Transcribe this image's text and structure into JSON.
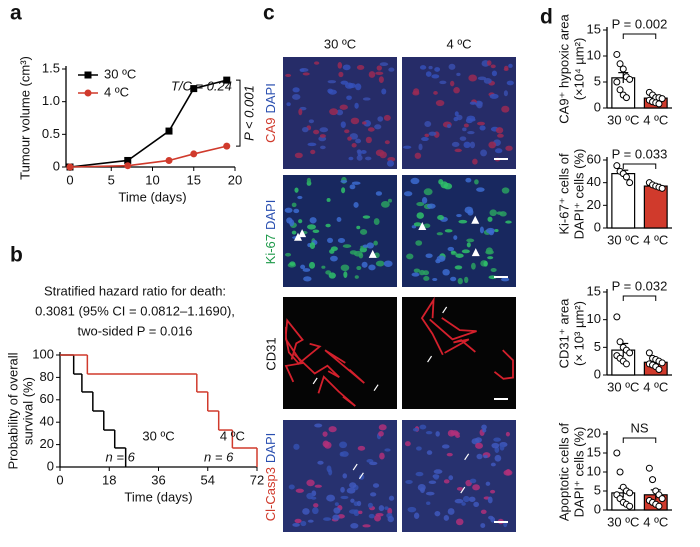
{
  "panel_labels": [
    "a",
    "b",
    "c",
    "d"
  ],
  "chart_data": [
    {
      "type": "line",
      "xlabel": "Time (days)",
      "ylabel": "Tumour volume (cm³)",
      "x": [
        0,
        7,
        12,
        15,
        19
      ],
      "xlim": [
        0,
        20
      ],
      "xticks": [
        0,
        5,
        10,
        15,
        20
      ],
      "ylim": [
        0,
        1.5
      ],
      "yticks": [
        0,
        0.5,
        {
          "value": 1,
          "label": "1.0"
        },
        1.5
      ],
      "legend": "upper left",
      "series": [
        {
          "name": "30 ºC",
          "color": "#000000",
          "marker": "square",
          "values": [
            0,
            0.1,
            0.55,
            1.2,
            1.33
          ]
        },
        {
          "name": "4 ºC",
          "color": "#d03a2c",
          "marker": "circle",
          "values": [
            0,
            0.02,
            0.1,
            0.2,
            0.32
          ]
        }
      ],
      "annotations": [
        "T/C = 0.24",
        "P < 0.001"
      ]
    },
    {
      "type": "step",
      "title": [
        "Stratified hazard ratio for death:",
        "0.3081 (95% CI = 0.0812–1.1690),",
        "two-sided P = 0.016"
      ],
      "xlabel": "Time (days)",
      "ylabel": [
        "Probability of overall",
        "survival (%)"
      ],
      "xlim": [
        0,
        72
      ],
      "xticks": [
        0,
        18,
        36,
        54,
        72
      ],
      "ylim": [
        0,
        100
      ],
      "yticks": [
        0,
        20,
        40,
        60,
        80,
        100
      ],
      "series": [
        {
          "name": "30 ºC",
          "color": "#000000",
          "x": [
            0,
            5,
            8,
            12,
            16,
            20,
            24
          ],
          "values": [
            100,
            83,
            67,
            50,
            33,
            17,
            0
          ],
          "n_label": "n = 6"
        },
        {
          "name": "4 ºC",
          "color": "#d03a2c",
          "x": [
            0,
            10,
            50,
            54,
            58,
            63,
            72
          ],
          "values": [
            100,
            83,
            67,
            50,
            33,
            17,
            0
          ],
          "n_label": "n = 6"
        }
      ]
    },
    {
      "type": "bar",
      "ylabel": [
        "CA9⁺ hypoxic area",
        "(×10⁴ µm²)"
      ],
      "categories": [
        "30 ºC",
        "4 ºC"
      ],
      "colors": [
        "#ffffff",
        "#d03a2c"
      ],
      "values": [
        5.8,
        1.9
      ],
      "errors": [
        1.0,
        0.3
      ],
      "points": [
        [
          10.3,
          8.5,
          7.5,
          6,
          5.5,
          5,
          3.5,
          2.5,
          2
        ],
        [
          3,
          2.5,
          2,
          2,
          1.8,
          1.5,
          1.2,
          1,
          0.8
        ]
      ],
      "ylim": [
        0,
        15
      ],
      "yticks": [
        0,
        5,
        10,
        15
      ],
      "annotation": "P = 0.002"
    },
    {
      "type": "bar",
      "ylabel": [
        "Ki-67⁺ cells of",
        "DAPI⁺ cells (%)"
      ],
      "categories": [
        "30 ºC",
        "4 ºC"
      ],
      "colors": [
        "#ffffff",
        "#d03a2c"
      ],
      "values": [
        48,
        37
      ],
      "errors": [
        3,
        1.5
      ],
      "points": [
        [
          55,
          50,
          48,
          45,
          40
        ],
        [
          40,
          38,
          37,
          36,
          35
        ]
      ],
      "ylim": [
        0,
        60
      ],
      "yticks": [
        0,
        20,
        40,
        60
      ],
      "annotation": "P = 0.033"
    },
    {
      "type": "bar",
      "ylabel": [
        "CD31⁺ area",
        "(× 10³ µm²)"
      ],
      "categories": [
        "30 ºC",
        "4 ºC"
      ],
      "colors": [
        "#ffffff",
        "#d03a2c"
      ],
      "values": [
        4.5,
        2.3
      ],
      "errors": [
        1.2,
        0.4
      ],
      "points": [
        [
          10.5,
          6,
          5,
          4.5,
          4,
          3.5,
          3,
          2.5,
          2
        ],
        [
          4,
          3,
          2.8,
          2.5,
          2.2,
          2,
          1.8,
          1.5,
          1
        ]
      ],
      "ylim": [
        0,
        15
      ],
      "yticks": [
        0,
        5,
        10,
        15
      ],
      "annotation": "P = 0.032"
    },
    {
      "type": "bar",
      "ylabel": [
        "Apoptotic cells of",
        "DAPI⁺ cells (%)"
      ],
      "categories": [
        "30 ºC",
        "4 ºC"
      ],
      "colors": [
        "#ffffff",
        "#d03a2c"
      ],
      "values": [
        4.5,
        4.0
      ],
      "errors": [
        1.2,
        1.3
      ],
      "points": [
        [
          15,
          10,
          6,
          5,
          4.5,
          4,
          3,
          2,
          1.5,
          1
        ],
        [
          11,
          8,
          5,
          4,
          3,
          2.5,
          2,
          1.5,
          1
        ]
      ],
      "ylim": [
        0,
        20
      ],
      "yticks": [
        0,
        5,
        10,
        15,
        20
      ],
      "annotation": "NS"
    }
  ],
  "panel_c": {
    "columns": [
      "30 ºC",
      "4 ºC"
    ],
    "rows": [
      [
        "CA9",
        "DAPI"
      ],
      [
        "Ki-67",
        "DAPI"
      ],
      [
        "CD31"
      ],
      [
        "Cl-Casp3",
        "DAPI"
      ]
    ]
  }
}
